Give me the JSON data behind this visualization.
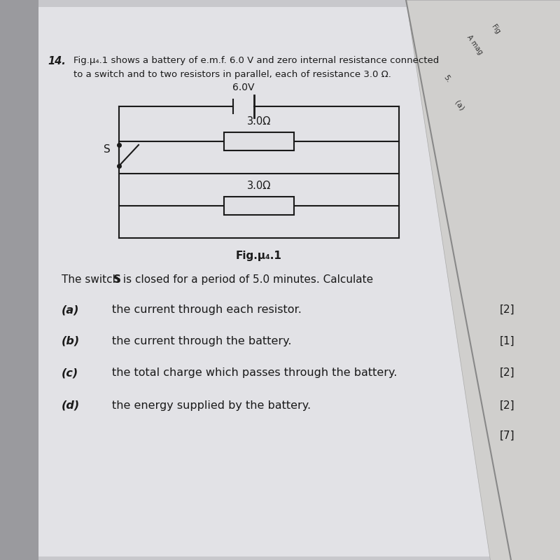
{
  "bg_main": "#c8c8cc",
  "bg_paper": "#e8e8ec",
  "bg_overlay": "#c0bfbd",
  "line_color": "#1a1a1a",
  "text_color": "#1a1a1a",
  "question_number": "14.",
  "intro_line1": "Fig.μ₄.1 shows a battery of e.m.f. 6.0 V and zero internal resistance connected",
  "intro_line2": "to a switch and to two resistors in parallel, each of resistance 3.0 Ω.",
  "battery_label": "6.0V",
  "switch_label": "S",
  "resistor1_label": "3.0Ω",
  "resistor2_label": "3.0Ω",
  "fig_label": "Fig.μ₄.1",
  "prompt_part1": "The switch ",
  "prompt_S": "S",
  "prompt_part2": " is closed for a period of 5.0 minutes. Calculate",
  "parts": [
    {
      "label": "(a)",
      "text": "the current through each resistor.",
      "marks": "[2]"
    },
    {
      "label": "(b)",
      "text": "the current through the battery.",
      "marks": "[1]"
    },
    {
      "label": "(c)",
      "text": "the total charge which passes through the battery.",
      "marks": "[2]"
    },
    {
      "label": "(d)",
      "text": "the energy supplied by the battery.",
      "marks": "[2]"
    }
  ],
  "total_marks": "[7]",
  "overlay_text1": "A mag",
  "overlay_text2": "Fig",
  "overlay_text3": "5.",
  "overlay_text4": "(a)"
}
